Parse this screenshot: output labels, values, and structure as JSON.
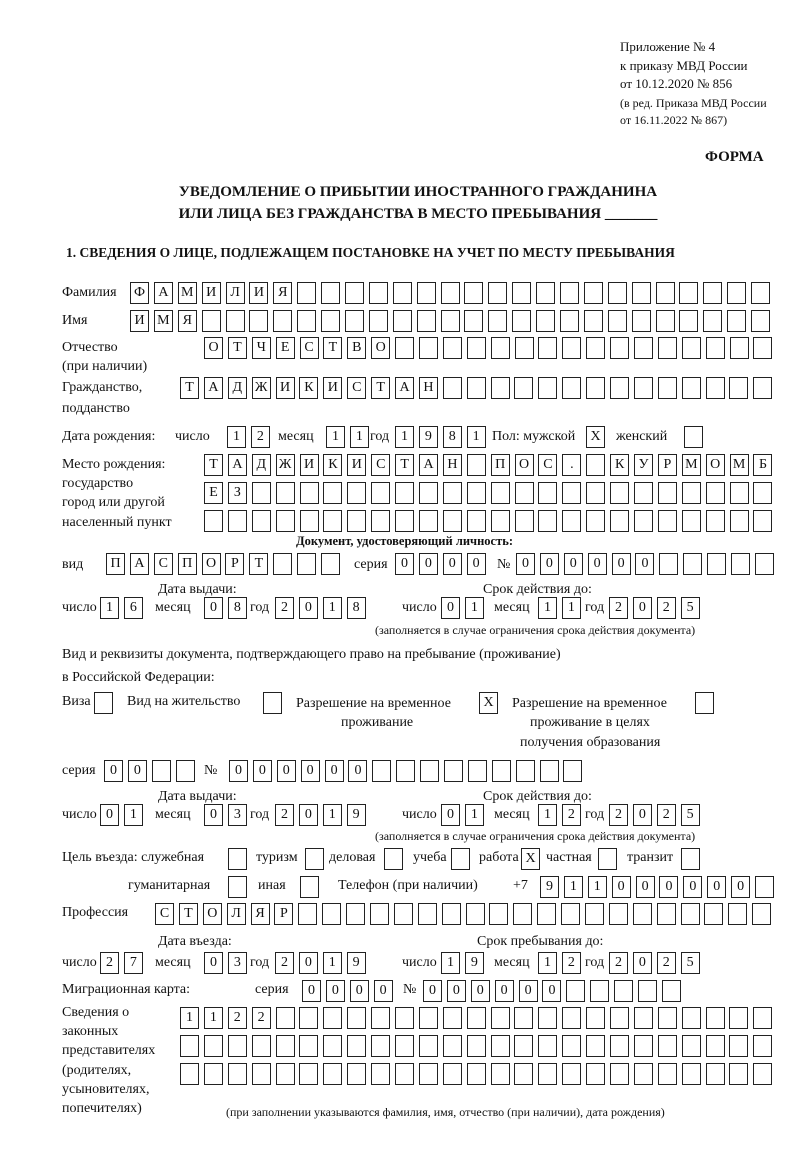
{
  "header": {
    "appendix": "Приложение № 4",
    "order": "к приказу МВД России",
    "order_date": "от 10.12.2020 № 856",
    "edit1": "(в ред. Приказа МВД России",
    "edit2": "от 16.11.2022 № 867)",
    "form": "ФОРМА",
    "title1": "УВЕДОМЛЕНИЕ О ПРИБЫТИИ ИНОСТРАННОГО ГРАЖДАНИНА",
    "title2": "ИЛИ ЛИЦА БЕЗ ГРАЖДАНСТВА В МЕСТО ПРЕБЫВАНИЯ _______",
    "section1": "1. СВЕДЕНИЯ О ЛИЦЕ, ПОДЛЕЖАЩЕМ ПОСТАНОВКЕ НА УЧЕТ ПО МЕСТУ ПРЕБЫВАНИЯ"
  },
  "labels": {
    "surname": "Фамилия",
    "name": "Имя",
    "patronymic": "Отчество",
    "patronymic2": "(при наличии)",
    "citizenship": "Гражданство,",
    "citizenship2": "подданство",
    "birth_date": "Дата рождения:",
    "day": "число",
    "month": "месяц",
    "year": "год",
    "sex": "Пол: мужской",
    "female": "женский",
    "birth_place": "Место рождения:",
    "bp2": "государство",
    "bp3": "город или другой",
    "bp4": "населенный пункт",
    "id_doc": "Документ, удостоверяющий личность:",
    "kind": "вид",
    "series": "серия",
    "number": "№",
    "issue_date": "Дата выдачи:",
    "valid_until": "Срок действия до:",
    "valid_note": "(заполняется в случае ограничения срока действия документа)",
    "right_doc1": "Вид и реквизиты документа, подтверждающего право на пребывание (проживание)",
    "right_doc2": "в Российской Федерации:",
    "visa": "Виза",
    "residence": "Вид на жительство",
    "temp1": "Разрешение на временное",
    "temp2": "проживание",
    "edu1": "Разрешение на временное",
    "edu2": "проживание в целях",
    "edu3": "получения образования",
    "purpose": "Цель въезда: служебная",
    "tourism": "туризм",
    "business": "деловая",
    "study": "учеба",
    "work": "работа",
    "private": "частная",
    "transit": "транзит",
    "humanitarian": "гуманитарная",
    "other": "иная",
    "phone": "Телефон (при наличии)",
    "phone_prefix": "+7",
    "profession": "Профессия",
    "entry_date": "Дата въезда:",
    "stay_until": "Срок пребывания до:",
    "migration_card": "Миграционная карта:",
    "rep1": "Сведения о",
    "rep2": "законных",
    "rep3": "представителях",
    "rep4": "(родителях,",
    "rep5": "усыновителях,",
    "rep6": "попечителях)",
    "rep_note": "(при заполнении указываются фамилия, имя, отчество (при наличии), дата рождения)"
  },
  "fields": {
    "surname": [
      "Ф",
      "А",
      "М",
      "И",
      "Л",
      "И",
      "Я"
    ],
    "name": [
      "И",
      "М",
      "Я"
    ],
    "patronymic": [
      "О",
      "Т",
      "Ч",
      "Е",
      "С",
      "Т",
      "В",
      "О"
    ],
    "citizenship": [
      "Т",
      "А",
      "Д",
      "Ж",
      "И",
      "К",
      "И",
      "С",
      "Т",
      "А",
      "Н"
    ],
    "birth_day": [
      "1",
      "2"
    ],
    "birth_month": [
      "1",
      "1"
    ],
    "birth_year": [
      "1",
      "9",
      "8",
      "1"
    ],
    "sex_male": [
      "X"
    ],
    "sex_female": [
      ""
    ],
    "birth_place1": [
      "Т",
      "А",
      "Д",
      "Ж",
      "И",
      "К",
      "И",
      "С",
      "Т",
      "А",
      "Н",
      "",
      "П",
      "О",
      "С",
      ".",
      "",
      "К",
      "У",
      "Р",
      "М",
      "О",
      "М",
      "Б"
    ],
    "birth_place2": [
      "Е",
      "З"
    ],
    "birth_place3": [],
    "doc_kind": [
      "П",
      "А",
      "С",
      "П",
      "О",
      "Р",
      "Т"
    ],
    "doc_series": [
      "0",
      "0",
      "0",
      "0"
    ],
    "doc_number": [
      "0",
      "0",
      "0",
      "0",
      "0",
      "0"
    ],
    "doc_issue_day": [
      "1",
      "6"
    ],
    "doc_issue_month": [
      "0",
      "8"
    ],
    "doc_issue_year": [
      "2",
      "0",
      "1",
      "8"
    ],
    "doc_valid_day": [
      "0",
      "1"
    ],
    "doc_valid_month": [
      "1",
      "1"
    ],
    "doc_valid_year": [
      "2",
      "0",
      "2",
      "5"
    ],
    "visa": [
      ""
    ],
    "residence": [
      ""
    ],
    "temp": [
      "X"
    ],
    "edu": [
      ""
    ],
    "right_series": [
      "0",
      "0"
    ],
    "right_number": [
      "0",
      "0",
      "0",
      "0",
      "0",
      "0"
    ],
    "right_issue_day": [
      "0",
      "1"
    ],
    "right_issue_month": [
      "0",
      "3"
    ],
    "right_issue_year": [
      "2",
      "0",
      "1",
      "9"
    ],
    "right_valid_day": [
      "0",
      "1"
    ],
    "right_valid_month": [
      "1",
      "2"
    ],
    "right_valid_year": [
      "2",
      "0",
      "2",
      "5"
    ],
    "p_official": [
      ""
    ],
    "p_tourism": [
      ""
    ],
    "p_business": [
      ""
    ],
    "p_study": [
      ""
    ],
    "p_work": [
      "X"
    ],
    "p_private": [
      ""
    ],
    "p_transit": [
      ""
    ],
    "p_humanitarian": [
      ""
    ],
    "p_other": [
      ""
    ],
    "phone": [
      "9",
      "1",
      "1",
      "0",
      "0",
      "0",
      "0",
      "0",
      "0"
    ],
    "profession": [
      "С",
      "Т",
      "О",
      "Л",
      "Я",
      "Р"
    ],
    "entry_day": [
      "2",
      "7"
    ],
    "entry_month": [
      "0",
      "3"
    ],
    "entry_year": [
      "2",
      "0",
      "1",
      "9"
    ],
    "stay_day": [
      "1",
      "9"
    ],
    "stay_month": [
      "1",
      "2"
    ],
    "stay_year": [
      "2",
      "0",
      "2",
      "5"
    ],
    "mc_series": [
      "0",
      "0",
      "0",
      "0"
    ],
    "mc_number": [
      "0",
      "0",
      "0",
      "0",
      "0",
      "0"
    ],
    "rep1": [
      "1",
      "1",
      "2",
      "2"
    ],
    "rep2": [],
    "rep3": []
  }
}
